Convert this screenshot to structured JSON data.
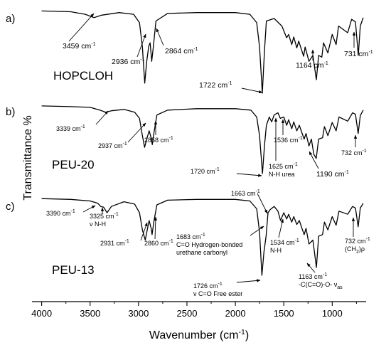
{
  "chart_data": {
    "type": "line",
    "title": "",
    "xlabel": "Wavenumber (cm",
    "xlabel_sup": "-1",
    "xlabel_end": ")",
    "ylabel": "Transmittance %",
    "xlim": [
      4100,
      650
    ],
    "x_reversed": true,
    "x_ticks": [
      4000,
      3500,
      3000,
      2500,
      2000,
      1500,
      1000
    ],
    "panels": [
      {
        "letter": "a)",
        "name": "HOPCLOH",
        "spectrum": [
          [
            4000,
            0.02
          ],
          [
            3700,
            0.03
          ],
          [
            3550,
            0.06
          ],
          [
            3459,
            0.1
          ],
          [
            3380,
            0.07
          ],
          [
            3200,
            0.04
          ],
          [
            3050,
            0.06
          ],
          [
            2990,
            0.16
          ],
          [
            2960,
            0.45
          ],
          [
            2936,
            0.88
          ],
          [
            2915,
            0.62
          ],
          [
            2895,
            0.44
          ],
          [
            2880,
            0.4
          ],
          [
            2864,
            0.62
          ],
          [
            2850,
            0.48
          ],
          [
            2820,
            0.14
          ],
          [
            2700,
            0.05
          ],
          [
            2400,
            0.04
          ],
          [
            2000,
            0.04
          ],
          [
            1850,
            0.06
          ],
          [
            1780,
            0.16
          ],
          [
            1750,
            0.45
          ],
          [
            1722,
            1.0
          ],
          [
            1700,
            0.5
          ],
          [
            1680,
            0.14
          ],
          [
            1600,
            0.11
          ],
          [
            1520,
            0.2
          ],
          [
            1471,
            0.34
          ],
          [
            1450,
            0.3
          ],
          [
            1418,
            0.42
          ],
          [
            1397,
            0.33
          ],
          [
            1366,
            0.46
          ],
          [
            1346,
            0.38
          ],
          [
            1295,
            0.56
          ],
          [
            1280,
            0.45
          ],
          [
            1240,
            0.62
          ],
          [
            1200,
            0.55
          ],
          [
            1164,
            0.84
          ],
          [
            1140,
            0.55
          ],
          [
            1107,
            0.57
          ],
          [
            1090,
            0.4
          ],
          [
            1045,
            0.52
          ],
          [
            1000,
            0.3
          ],
          [
            960,
            0.42
          ],
          [
            935,
            0.2
          ],
          [
            840,
            0.28
          ],
          [
            800,
            0.12
          ],
          [
            760,
            0.15
          ],
          [
            731,
            0.55
          ],
          [
            710,
            0.2
          ],
          [
            680,
            0.1
          ]
        ],
        "labels": [
          {
            "base": "3459 cm",
            "sup": "-1",
            "x": 3459
          },
          {
            "base": "2936 cm",
            "sup": "-1",
            "x": 2936
          },
          {
            "base": "2864 cm",
            "sup": "-1",
            "x": 2864
          },
          {
            "base": "1722 cm",
            "sup": "-1",
            "x": 1722
          },
          {
            "base": "1164 cm",
            "sup": "-1",
            "x": 1164
          },
          {
            "base": "731 cm",
            "sup": "-1",
            "x": 731
          }
        ]
      },
      {
        "letter": "b)",
        "name": "PEU-20",
        "spectrum": [
          [
            4000,
            0.02
          ],
          [
            3700,
            0.03
          ],
          [
            3500,
            0.04
          ],
          [
            3400,
            0.08
          ],
          [
            3339,
            0.11
          ],
          [
            3280,
            0.09
          ],
          [
            3150,
            0.07
          ],
          [
            3040,
            0.11
          ],
          [
            2990,
            0.2
          ],
          [
            2960,
            0.45
          ],
          [
            2937,
            0.62
          ],
          [
            2915,
            0.5
          ],
          [
            2890,
            0.38
          ],
          [
            2870,
            0.48
          ],
          [
            2858,
            0.58
          ],
          [
            2840,
            0.4
          ],
          [
            2810,
            0.15
          ],
          [
            2700,
            0.08
          ],
          [
            2400,
            0.06
          ],
          [
            2000,
            0.06
          ],
          [
            1840,
            0.08
          ],
          [
            1780,
            0.18
          ],
          [
            1750,
            0.45
          ],
          [
            1720,
            1.0
          ],
          [
            1700,
            0.6
          ],
          [
            1680,
            0.3
          ],
          [
            1650,
            0.18
          ],
          [
            1625,
            0.25
          ],
          [
            1600,
            0.15
          ],
          [
            1560,
            0.12
          ],
          [
            1536,
            0.2
          ],
          [
            1500,
            0.18
          ],
          [
            1470,
            0.3
          ],
          [
            1450,
            0.22
          ],
          [
            1418,
            0.35
          ],
          [
            1397,
            0.25
          ],
          [
            1366,
            0.38
          ],
          [
            1340,
            0.3
          ],
          [
            1290,
            0.5
          ],
          [
            1270,
            0.42
          ],
          [
            1240,
            0.6
          ],
          [
            1215,
            0.5
          ],
          [
            1190,
            0.72
          ],
          [
            1165,
            0.78
          ],
          [
            1140,
            0.5
          ],
          [
            1100,
            0.48
          ],
          [
            1080,
            0.32
          ],
          [
            1045,
            0.45
          ],
          [
            1000,
            0.26
          ],
          [
            960,
            0.38
          ],
          [
            930,
            0.18
          ],
          [
            840,
            0.24
          ],
          [
            790,
            0.12
          ],
          [
            760,
            0.14
          ],
          [
            732,
            0.42
          ],
          [
            710,
            0.16
          ],
          [
            680,
            0.08
          ]
        ],
        "labels": [
          {
            "base": "3339 cm",
            "sup": "-1",
            "x": 3339
          },
          {
            "base": "2937 cm",
            "sup": "-1",
            "x": 2937
          },
          {
            "base": "2858 cm",
            "sup": "-1",
            "x": 2858
          },
          {
            "base": "1720 cm",
            "sup": "-1",
            "x": 1720
          },
          {
            "base": "1625 cm",
            "sup": "-1",
            "line2": "N-H urea",
            "x": 1625
          },
          {
            "base": "1536 cm",
            "sup": "-1",
            "x": 1536
          },
          {
            "base": "1190 cm",
            "sup": "-1",
            "x": 1190
          },
          {
            "base": "732 cm",
            "sup": "-1",
            "x": 732
          }
        ]
      },
      {
        "letter": "c)",
        "name": "PEU-13",
        "spectrum": [
          [
            4000,
            0.02
          ],
          [
            3700,
            0.03
          ],
          [
            3500,
            0.05
          ],
          [
            3420,
            0.08
          ],
          [
            3390,
            0.12
          ],
          [
            3360,
            0.13
          ],
          [
            3325,
            0.2
          ],
          [
            3280,
            0.12
          ],
          [
            3150,
            0.06
          ],
          [
            3040,
            0.09
          ],
          [
            2990,
            0.2
          ],
          [
            2960,
            0.42
          ],
          [
            2931,
            0.55
          ],
          [
            2910,
            0.42
          ],
          [
            2890,
            0.3
          ],
          [
            2870,
            0.4
          ],
          [
            2860,
            0.48
          ],
          [
            2840,
            0.3
          ],
          [
            2810,
            0.1
          ],
          [
            2700,
            0.04
          ],
          [
            2400,
            0.03
          ],
          [
            2000,
            0.03
          ],
          [
            1850,
            0.05
          ],
          [
            1780,
            0.15
          ],
          [
            1750,
            0.45
          ],
          [
            1726,
            1.0
          ],
          [
            1705,
            0.7
          ],
          [
            1683,
            0.5
          ],
          [
            1663,
            0.2
          ],
          [
            1640,
            0.16
          ],
          [
            1600,
            0.12
          ],
          [
            1560,
            0.18
          ],
          [
            1534,
            0.3
          ],
          [
            1500,
            0.2
          ],
          [
            1470,
            0.28
          ],
          [
            1450,
            0.22
          ],
          [
            1418,
            0.32
          ],
          [
            1397,
            0.25
          ],
          [
            1366,
            0.35
          ],
          [
            1340,
            0.3
          ],
          [
            1290,
            0.48
          ],
          [
            1270,
            0.4
          ],
          [
            1240,
            0.6
          ],
          [
            1200,
            0.55
          ],
          [
            1163,
            0.9
          ],
          [
            1140,
            0.5
          ],
          [
            1100,
            0.48
          ],
          [
            1080,
            0.32
          ],
          [
            1045,
            0.42
          ],
          [
            1000,
            0.25
          ],
          [
            960,
            0.36
          ],
          [
            930,
            0.18
          ],
          [
            840,
            0.22
          ],
          [
            790,
            0.12
          ],
          [
            760,
            0.14
          ],
          [
            732,
            0.38
          ],
          [
            710,
            0.14
          ],
          [
            680,
            0.08
          ]
        ],
        "labels": [
          {
            "base": "3390 cm",
            "sup": "-1",
            "x": 3390
          },
          {
            "base": "3325 cm",
            "sup": "-1",
            "line2": "ν N-H",
            "x": 3325
          },
          {
            "base": "2931 cm",
            "sup": "-1",
            "x": 2931
          },
          {
            "base": "2860 cm",
            "sup": "-1",
            "x": 2860
          },
          {
            "base": "1663 cm",
            "sup": "-1",
            "x": 1663
          },
          {
            "base": "1683 cm",
            "sup": "-1",
            "line2": "C=O Hydrogen-bonded",
            "line3": "urethane carbonyl",
            "x": 1683
          },
          {
            "base": "1726 cm",
            "sup": "-1",
            "line2": "ν C=O Free ester",
            "x": 1726
          },
          {
            "base": "1534 cm",
            "sup": "-1",
            "line2": "N-H",
            "x": 1534
          },
          {
            "base": "1163 cm",
            "sup": "-1",
            "line2": "-C(C=O)-O- ν",
            "line2_sub": "as",
            "x": 1163
          },
          {
            "base": "732 cm",
            "sup": "-1",
            "line2": "(CH",
            "line2_sub": "2",
            "line2_end": ")ρ",
            "x": 732
          }
        ]
      }
    ]
  }
}
